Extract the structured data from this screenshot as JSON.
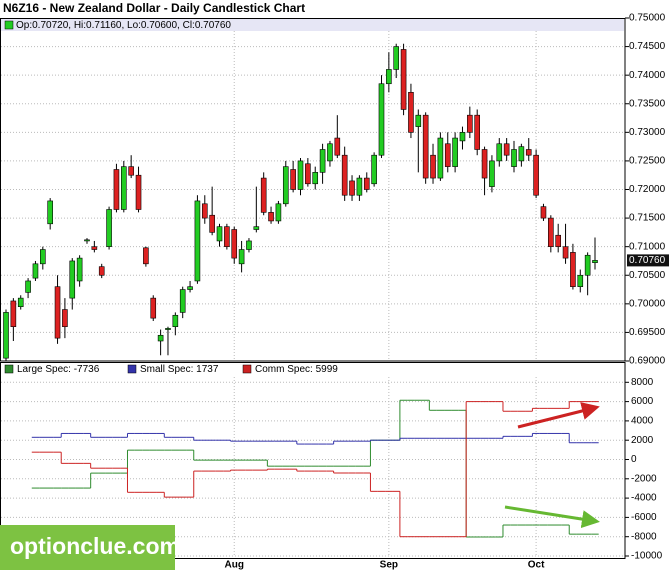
{
  "chart_data": [
    {
      "type": "candlestick",
      "title": "N6Z16 - New Zealand Dollar - Daily Candlestick Chart",
      "info": "Op:0.70720, Hi:0.71160, Lo:0.70600, Cl:0.70760",
      "open": [
        0.6905,
        0.7005,
        0.6995,
        0.702,
        0.7045,
        0.707,
        0.714,
        0.703,
        0.699,
        0.701,
        0.704,
        0.711,
        0.71,
        0.7065,
        0.71,
        0.7235,
        0.7165,
        0.724,
        0.7225,
        0.7098,
        0.701,
        0.6935,
        0.6955,
        0.696,
        0.6985,
        0.7025,
        0.704,
        0.7175,
        0.7155,
        0.711,
        0.7135,
        0.713,
        0.707,
        0.7095,
        0.713,
        0.722,
        0.716,
        0.7145,
        0.7175,
        0.7235,
        0.72,
        0.7245,
        0.721,
        0.723,
        0.725,
        0.729,
        0.726,
        0.7215,
        0.719,
        0.722,
        0.721,
        0.726,
        0.7385,
        0.741,
        0.7445,
        0.737,
        0.731,
        0.733,
        0.726,
        0.722,
        0.728,
        0.724,
        0.7285,
        0.733,
        0.733,
        0.727,
        0.7205,
        0.725,
        0.728,
        0.724,
        0.725,
        0.727,
        0.726,
        0.717,
        0.715,
        0.712,
        0.71,
        0.709,
        0.703,
        0.705,
        0.7072
      ],
      "high": [
        0.699,
        0.701,
        0.7015,
        0.7045,
        0.7075,
        0.71,
        0.7185,
        0.705,
        0.701,
        0.708,
        0.7085,
        0.7115,
        0.711,
        0.707,
        0.717,
        0.7245,
        0.725,
        0.726,
        0.724,
        0.71,
        0.7015,
        0.6955,
        0.696,
        0.6985,
        0.703,
        0.704,
        0.719,
        0.719,
        0.7205,
        0.714,
        0.714,
        0.7135,
        0.711,
        0.7115,
        0.7205,
        0.723,
        0.717,
        0.718,
        0.725,
        0.725,
        0.7255,
        0.7255,
        0.724,
        0.728,
        0.7285,
        0.733,
        0.7275,
        0.7225,
        0.7225,
        0.723,
        0.7265,
        0.74,
        0.744,
        0.7455,
        0.7455,
        0.7385,
        0.734,
        0.7335,
        0.728,
        0.73,
        0.73,
        0.73,
        0.731,
        0.7345,
        0.734,
        0.7275,
        0.726,
        0.729,
        0.729,
        0.7285,
        0.728,
        0.729,
        0.727,
        0.7175,
        0.7155,
        0.714,
        0.714,
        0.7105,
        0.706,
        0.709,
        0.7116
      ],
      "low": [
        0.69,
        0.6935,
        0.699,
        0.701,
        0.704,
        0.706,
        0.713,
        0.693,
        0.694,
        0.699,
        0.703,
        0.7105,
        0.709,
        0.7045,
        0.7095,
        0.716,
        0.716,
        0.722,
        0.716,
        0.7065,
        0.697,
        0.691,
        0.691,
        0.6945,
        0.6975,
        0.702,
        0.7035,
        0.714,
        0.712,
        0.71,
        0.7095,
        0.707,
        0.7055,
        0.709,
        0.7125,
        0.7155,
        0.714,
        0.714,
        0.717,
        0.7195,
        0.719,
        0.7205,
        0.72,
        0.721,
        0.724,
        0.7255,
        0.718,
        0.718,
        0.718,
        0.7195,
        0.7205,
        0.7255,
        0.737,
        0.7395,
        0.733,
        0.729,
        0.723,
        0.721,
        0.721,
        0.7215,
        0.723,
        0.723,
        0.727,
        0.729,
        0.726,
        0.719,
        0.7195,
        0.724,
        0.725,
        0.723,
        0.724,
        0.725,
        0.7185,
        0.7145,
        0.709,
        0.709,
        0.707,
        0.7025,
        0.702,
        0.7015,
        0.706
      ],
      "close": [
        0.6985,
        0.696,
        0.701,
        0.704,
        0.707,
        0.7095,
        0.718,
        0.694,
        0.696,
        0.7075,
        0.708,
        0.7112,
        0.7095,
        0.705,
        0.7165,
        0.7165,
        0.724,
        0.7225,
        0.7165,
        0.707,
        0.6975,
        0.6945,
        0.6957,
        0.698,
        0.7025,
        0.703,
        0.718,
        0.715,
        0.7125,
        0.7135,
        0.71,
        0.708,
        0.7095,
        0.711,
        0.7135,
        0.716,
        0.7145,
        0.7175,
        0.724,
        0.72,
        0.725,
        0.721,
        0.723,
        0.727,
        0.728,
        0.726,
        0.719,
        0.719,
        0.722,
        0.72,
        0.726,
        0.7385,
        0.741,
        0.745,
        0.734,
        0.73,
        0.733,
        0.722,
        0.722,
        0.729,
        0.724,
        0.729,
        0.73,
        0.73,
        0.727,
        0.722,
        0.725,
        0.728,
        0.726,
        0.727,
        0.7275,
        0.726,
        0.719,
        0.715,
        0.71,
        0.71,
        0.708,
        0.703,
        0.705,
        0.7085,
        0.7076
      ],
      "up_color": "#22cc22",
      "down_color": "#dd2222",
      "ylim": [
        0.69,
        0.75
      ],
      "yticks": [
        {
          "value": 0.69,
          "label": "0.69000"
        },
        {
          "value": 0.695,
          "label": "0.69500"
        },
        {
          "value": 0.7,
          "label": "0.70000"
        },
        {
          "value": 0.705,
          "label": "0.70500"
        },
        {
          "value": 0.71,
          "label": "0.71000"
        },
        {
          "value": 0.715,
          "label": "0.71500"
        },
        {
          "value": 0.72,
          "label": "0.72000"
        },
        {
          "value": 0.725,
          "label": "0.72500"
        },
        {
          "value": 0.73,
          "label": "0.73000"
        },
        {
          "value": 0.735,
          "label": "0.73500"
        },
        {
          "value": 0.74,
          "label": "0.74000"
        },
        {
          "value": 0.745,
          "label": "0.74500"
        },
        {
          "value": 0.75,
          "label": "0.75000"
        }
      ],
      "last_label": {
        "value": 0.7076,
        "label": "0.70760"
      },
      "grid": true
    },
    {
      "type": "step",
      "categories": [
        null,
        null,
        null,
        null,
        null,
        null,
        null,
        null,
        null,
        null,
        null,
        null,
        null,
        null,
        null,
        null,
        null,
        null,
        null,
        null,
        null,
        null,
        null,
        null,
        null,
        null,
        null,
        null,
        null,
        null,
        null,
        "Aug",
        null,
        null,
        null,
        null,
        null,
        null,
        null,
        null,
        null,
        null,
        null,
        null,
        null,
        null,
        null,
        null,
        null,
        null,
        null,
        null,
        "Sep",
        null,
        null,
        null,
        null,
        null,
        null,
        null,
        null,
        null,
        null,
        null,
        null,
        null,
        null,
        null,
        null,
        null,
        null,
        null,
        "Oct",
        null,
        null,
        null,
        null,
        null,
        null,
        null,
        null
      ],
      "series": [
        {
          "name": "Large Spec: -7736",
          "color": "#2e8b2e",
          "values": [
            null,
            null,
            null,
            null,
            -2960,
            -2960,
            -2960,
            -2960,
            -2960,
            -2960,
            -2960,
            -2960,
            -1410,
            -1410,
            -1410,
            -1410,
            -1410,
            970,
            970,
            970,
            970,
            970,
            970,
            970,
            970,
            970,
            -65,
            -65,
            -65,
            -65,
            -65,
            -65,
            -65,
            -65,
            -65,
            -65,
            -690,
            -690,
            -690,
            -690,
            -690,
            -690,
            -690,
            -690,
            -690,
            -690,
            -690,
            -690,
            -690,
            -690,
            2000,
            2000,
            2000,
            2000,
            6140,
            6140,
            6140,
            6140,
            5100,
            5100,
            5100,
            5100,
            5100,
            -8030,
            -8030,
            -8030,
            -8030,
            -8030,
            -6790,
            -6790,
            -6790,
            -6790,
            -6790,
            -6790,
            -6790,
            -6790,
            -6790,
            -7736,
            -7736,
            -7736,
            -7736
          ]
        },
        {
          "name": "Small Spec: 1737",
          "color": "#3333aa",
          "values": [
            null,
            null,
            null,
            null,
            2300,
            2300,
            2300,
            2300,
            2700,
            2700,
            2700,
            2700,
            2300,
            2300,
            2300,
            2300,
            2300,
            2700,
            2700,
            2700,
            2700,
            2700,
            2300,
            2300,
            2300,
            2300,
            2000,
            2000,
            2000,
            2000,
            2000,
            1900,
            1900,
            1900,
            1900,
            1900,
            1900,
            1900,
            1900,
            1900,
            1600,
            1600,
            1600,
            1600,
            1600,
            1900,
            1900,
            1900,
            1900,
            1900,
            2000,
            2000,
            2000,
            2000,
            2200,
            2200,
            2200,
            2200,
            2200,
            2200,
            2200,
            2200,
            2200,
            2200,
            2200,
            2200,
            2200,
            2200,
            2400,
            2400,
            2400,
            2400,
            2700,
            2700,
            2700,
            2700,
            2700,
            1737,
            1737,
            1737,
            1737
          ]
        },
        {
          "name": "Comm Spec: 5999",
          "color": "#cc2222",
          "values": [
            null,
            null,
            null,
            null,
            760,
            760,
            760,
            760,
            -400,
            -400,
            -400,
            -400,
            -900,
            -900,
            -900,
            -900,
            -900,
            -3400,
            -3400,
            -3400,
            -3400,
            -3400,
            -3900,
            -3900,
            -3900,
            -3900,
            -1200,
            -1200,
            -1200,
            -1200,
            -1200,
            -1100,
            -1100,
            -1100,
            -1100,
            -1100,
            -1000,
            -1000,
            -1000,
            -1000,
            -1200,
            -1200,
            -1200,
            -1200,
            -1200,
            -1400,
            -1400,
            -1400,
            -1400,
            -1400,
            -3300,
            -3300,
            -3300,
            -3300,
            -8000,
            -8000,
            -8000,
            -8000,
            -8000,
            -8000,
            -8000,
            -8000,
            -8000,
            6000,
            6000,
            6000,
            6000,
            6000,
            5000,
            5000,
            5000,
            5000,
            5300,
            5300,
            5300,
            5300,
            5300,
            5999,
            5999,
            5999,
            5999
          ]
        }
      ],
      "ylim": [
        -10000,
        10000
      ],
      "yticks": [
        -10000,
        -8000,
        -6000,
        -4000,
        -2000,
        0,
        2000,
        4000,
        6000,
        8000
      ],
      "grid": true
    }
  ],
  "watermark": "optionclue.com"
}
